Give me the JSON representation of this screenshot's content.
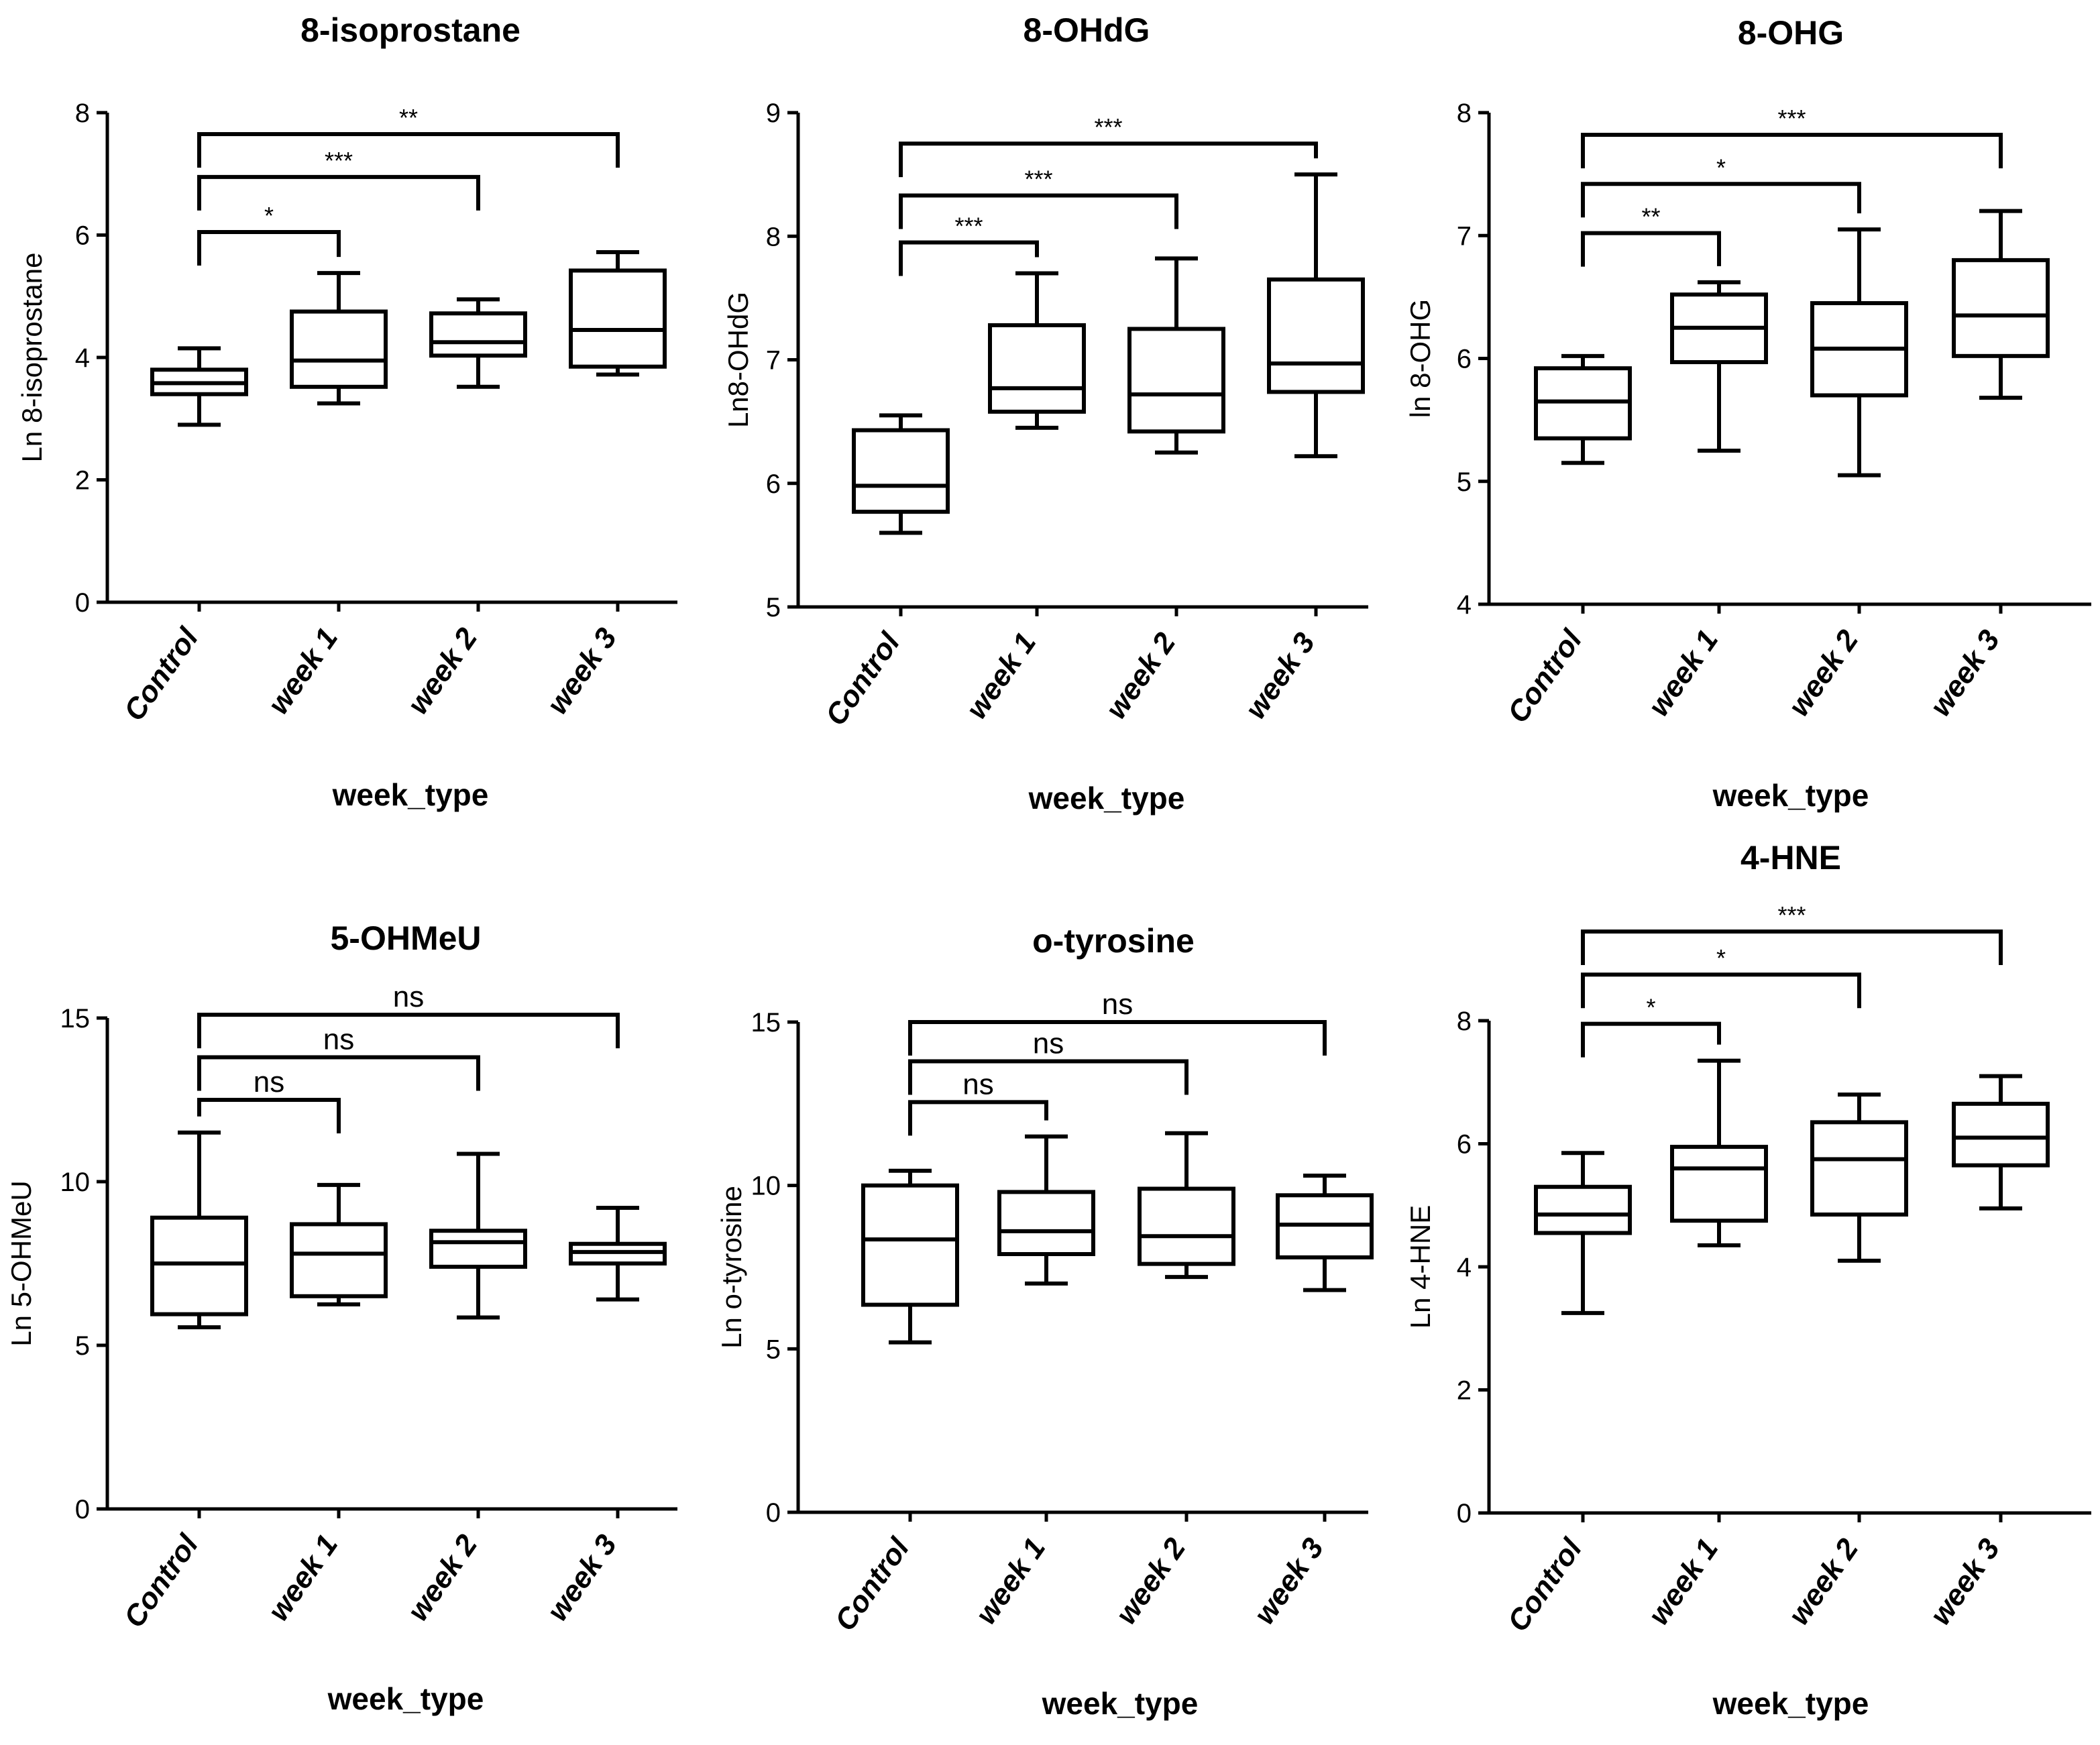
{
  "colors": {
    "ink": "#000000",
    "background": "#ffffff"
  },
  "chart_data": [
    {
      "type": "box",
      "title": "8-isoprostane",
      "ylabel": "Ln 8-isoprostane",
      "xlabel": "week_type",
      "categories": [
        "Control",
        "week 1",
        "week 2",
        "week 3"
      ],
      "ylim": [
        0,
        8
      ],
      "yticks": [
        "0",
        "2",
        "4",
        "6",
        "8"
      ],
      "boxes": [
        {
          "min": 2.9,
          "q1": 3.4,
          "median": 3.58,
          "q3": 3.8,
          "max": 4.15
        },
        {
          "min": 3.25,
          "q1": 3.52,
          "median": 3.95,
          "q3": 4.75,
          "max": 5.38
        },
        {
          "min": 3.52,
          "q1": 4.03,
          "median": 4.25,
          "q3": 4.72,
          "max": 4.95
        },
        {
          "min": 3.72,
          "q1": 3.85,
          "median": 4.45,
          "q3": 5.42,
          "max": 5.72
        }
      ],
      "comparisons": [
        {
          "from": "Control",
          "to": "week 1",
          "label": "*",
          "y": 6.05
        },
        {
          "from": "Control",
          "to": "week 2",
          "label": "***",
          "y": 6.95
        },
        {
          "from": "Control",
          "to": "week 3",
          "label": "**",
          "y": 7.65
        }
      ]
    },
    {
      "type": "box",
      "title": "8-OHdG",
      "ylabel": "Ln8-OHdG",
      "xlabel": "week_type",
      "categories": [
        "Control",
        "week 1",
        "week 2",
        "week 3"
      ],
      "ylim": [
        5,
        9
      ],
      "yticks": [
        "5",
        "6",
        "7",
        "8",
        "9"
      ],
      "boxes": [
        {
          "min": 5.6,
          "q1": 5.77,
          "median": 5.98,
          "q3": 6.43,
          "max": 6.55
        },
        {
          "min": 6.45,
          "q1": 6.58,
          "median": 6.77,
          "q3": 7.28,
          "max": 7.7
        },
        {
          "min": 6.25,
          "q1": 6.42,
          "median": 6.72,
          "q3": 7.25,
          "max": 7.82
        },
        {
          "min": 6.22,
          "q1": 6.74,
          "median": 6.97,
          "q3": 7.65,
          "max": 8.5
        }
      ],
      "comparisons": [
        {
          "from": "Control",
          "to": "week 1",
          "label": "***",
          "y": 7.95
        },
        {
          "from": "Control",
          "to": "week 2",
          "label": "***",
          "y": 8.33
        },
        {
          "from": "Control",
          "to": "week 3",
          "label": "***",
          "y": 8.75
        }
      ]
    },
    {
      "type": "box",
      "title": "8-OHG",
      "ylabel": "ln 8-OHG",
      "xlabel": "week_type",
      "categories": [
        "Control",
        "week 1",
        "week 2",
        "week 3"
      ],
      "ylim": [
        4,
        8
      ],
      "yticks": [
        "4",
        "5",
        "6",
        "7",
        "8"
      ],
      "boxes": [
        {
          "min": 5.15,
          "q1": 5.35,
          "median": 5.65,
          "q3": 5.92,
          "max": 6.02
        },
        {
          "min": 5.25,
          "q1": 5.97,
          "median": 6.25,
          "q3": 6.52,
          "max": 6.62
        },
        {
          "min": 5.05,
          "q1": 5.7,
          "median": 6.08,
          "q3": 6.45,
          "max": 7.05
        },
        {
          "min": 5.68,
          "q1": 6.02,
          "median": 6.35,
          "q3": 6.8,
          "max": 7.2
        }
      ],
      "comparisons": [
        {
          "from": "Control",
          "to": "week 1",
          "label": "**",
          "y": 7.02
        },
        {
          "from": "Control",
          "to": "week 2",
          "label": "*",
          "y": 7.42
        },
        {
          "from": "Control",
          "to": "week 3",
          "label": "***",
          "y": 7.82
        }
      ]
    },
    {
      "type": "box",
      "title": "5-OHMeU",
      "ylabel": "Ln 5-OHMeU",
      "xlabel": "week_type",
      "categories": [
        "Control",
        "week 1",
        "week 2",
        "week 3"
      ],
      "ylim": [
        0,
        15
      ],
      "yticks": [
        "0",
        "5",
        "10",
        "15"
      ],
      "boxes": [
        {
          "min": 5.55,
          "q1": 5.95,
          "median": 7.5,
          "q3": 8.9,
          "max": 11.5
        },
        {
          "min": 6.25,
          "q1": 6.5,
          "median": 7.8,
          "q3": 8.7,
          "max": 9.9
        },
        {
          "min": 5.85,
          "q1": 7.4,
          "median": 8.15,
          "q3": 8.5,
          "max": 10.85
        },
        {
          "min": 6.4,
          "q1": 7.5,
          "median": 7.85,
          "q3": 8.1,
          "max": 9.2
        }
      ],
      "comparisons": [
        {
          "from": "Control",
          "to": "week 1",
          "label": "ns",
          "y": 12.5
        },
        {
          "from": "Control",
          "to": "week 2",
          "label": "ns",
          "y": 13.8
        },
        {
          "from": "Control",
          "to": "week 3",
          "label": "ns",
          "y": 15.1
        }
      ]
    },
    {
      "type": "box",
      "title": "o-tyrosine",
      "ylabel": "Ln o-tyrosine",
      "xlabel": "week_type",
      "categories": [
        "Control",
        "week 1",
        "week 2",
        "week 3"
      ],
      "ylim": [
        0,
        15
      ],
      "yticks": [
        "0",
        "5",
        "10",
        "15"
      ],
      "boxes": [
        {
          "min": 5.2,
          "q1": 6.35,
          "median": 8.35,
          "q3": 10.0,
          "max": 10.45
        },
        {
          "min": 7.0,
          "q1": 7.9,
          "median": 8.6,
          "q3": 9.8,
          "max": 11.5
        },
        {
          "min": 7.2,
          "q1": 7.6,
          "median": 8.45,
          "q3": 9.9,
          "max": 11.6
        },
        {
          "min": 6.8,
          "q1": 7.8,
          "median": 8.8,
          "q3": 9.7,
          "max": 10.3
        }
      ],
      "comparisons": [
        {
          "from": "Control",
          "to": "week 1",
          "label": "ns",
          "y": 12.55
        },
        {
          "from": "Control",
          "to": "week 2",
          "label": "ns",
          "y": 13.8
        },
        {
          "from": "Control",
          "to": "week 3",
          "label": "ns",
          "y": 15.0
        }
      ]
    },
    {
      "type": "box",
      "title": "4-HNE",
      "ylabel": "Ln 4-HNE",
      "xlabel": "week_type",
      "categories": [
        "Control",
        "week 1",
        "week 2",
        "week 3"
      ],
      "ylim": [
        0,
        8
      ],
      "yticks": [
        "0",
        "2",
        "4",
        "6",
        "8"
      ],
      "boxes": [
        {
          "min": 3.25,
          "q1": 4.55,
          "median": 4.85,
          "q3": 5.3,
          "max": 5.85
        },
        {
          "min": 4.35,
          "q1": 4.75,
          "median": 5.6,
          "q3": 5.95,
          "max": 7.35
        },
        {
          "min": 4.1,
          "q1": 4.85,
          "median": 5.75,
          "q3": 6.35,
          "max": 6.8
        },
        {
          "min": 4.95,
          "q1": 5.65,
          "median": 6.1,
          "q3": 6.65,
          "max": 7.1
        }
      ],
      "comparisons": [
        {
          "from": "Control",
          "to": "week 1",
          "label": "*",
          "y": 7.95
        },
        {
          "from": "Control",
          "to": "week 2",
          "label": "*",
          "y": 8.75
        },
        {
          "from": "Control",
          "to": "week 3",
          "label": "***",
          "y": 9.45
        }
      ]
    }
  ]
}
